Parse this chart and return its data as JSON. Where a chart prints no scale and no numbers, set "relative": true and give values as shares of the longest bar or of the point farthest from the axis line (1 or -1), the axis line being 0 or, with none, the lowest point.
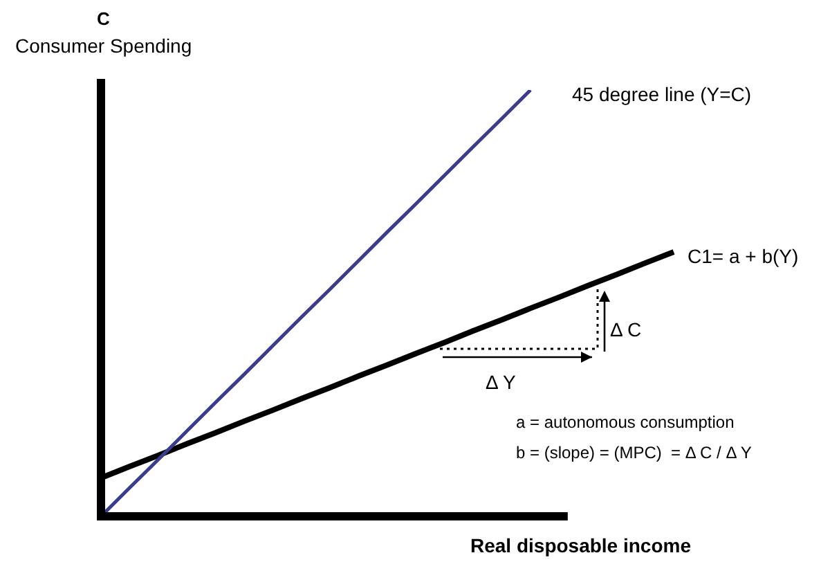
{
  "chart_data": {
    "type": "line",
    "relative": true,
    "xlabel": "Real disposable income",
    "ylabel": "C\nConsumer Spending",
    "categories": [
      null,
      null,
      null,
      null,
      null,
      null,
      null,
      null,
      null,
      null,
      null,
      null,
      null,
      null,
      null,
      null,
      null,
      null,
      null,
      null,
      null
    ],
    "series": [
      {
        "name": "45 degree line (Y=C)",
        "color": "#3a3c8c",
        "values": [
          0,
          0.067,
          0.133,
          0.2,
          0.267,
          0.333,
          0.4,
          0.467,
          0.533,
          0.6,
          0.667,
          0.733,
          0.8,
          0.867,
          0.933,
          1,
          null,
          null,
          null,
          null,
          null
        ]
      },
      {
        "name": "C1= a + b(Y)",
        "color": "#000000",
        "values": [
          0.09,
          0.117,
          0.143,
          0.17,
          0.196,
          0.223,
          0.249,
          0.276,
          0.302,
          0.329,
          0.355,
          0.382,
          0.408,
          0.435,
          0.461,
          0.488,
          0.514,
          0.541,
          0.567,
          0.594,
          0.62
        ]
      }
    ],
    "annotations": [
      "Δ C",
      "Δ Y",
      "a = autonomous consumption",
      "b = (slope) = (MPC)  = Δ C / Δ Y"
    ],
    "legend": false,
    "marker": "none",
    "line_style": "solid"
  }
}
